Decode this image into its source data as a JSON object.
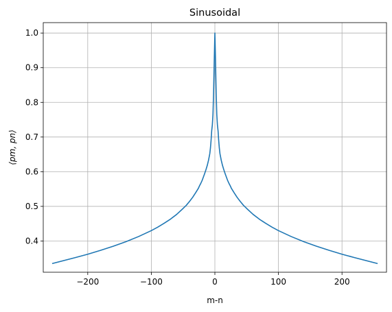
{
  "chart_data": {
    "type": "line",
    "title": "Sinusoidal",
    "xlabel": "m-n",
    "ylabel": "⟨pm, pn⟩",
    "xlim": [
      -270,
      270
    ],
    "ylim": [
      0.31,
      1.03
    ],
    "xticks": [
      -200,
      -100,
      0,
      100,
      200
    ],
    "xtick_labels": [
      "−200",
      "−100",
      "0",
      "100",
      "200"
    ],
    "yticks": [
      0.4,
      0.5,
      0.6,
      0.7,
      0.8,
      0.9,
      1.0
    ],
    "ytick_labels": [
      "0.4",
      "0.5",
      "0.6",
      "0.7",
      "0.8",
      "0.9",
      "1.0"
    ],
    "grid": true,
    "series": [
      {
        "color": "#1f77b4",
        "x": [
          -256,
          -220,
          -200,
          -180,
          -160,
          -140,
          -120,
          -100,
          -90,
          -80,
          -70,
          -60,
          -50,
          -45,
          -40,
          -35,
          -30,
          -28,
          -26,
          -24,
          -22,
          -20,
          -18,
          -16,
          -14,
          -12,
          -10,
          -8,
          -7,
          -6,
          -5,
          -4,
          -3,
          -2,
          -1,
          0,
          1,
          2,
          3,
          4,
          5,
          6,
          7,
          8,
          10,
          12,
          14,
          16,
          18,
          20,
          22,
          24,
          26,
          28,
          30,
          35,
          40,
          45,
          50,
          60,
          70,
          80,
          90,
          100,
          120,
          140,
          160,
          180,
          200,
          220,
          256
        ],
        "y": [
          0.335,
          0.352,
          0.362,
          0.373,
          0.385,
          0.398,
          0.413,
          0.43,
          0.44,
          0.451,
          0.463,
          0.477,
          0.494,
          0.503,
          0.514,
          0.526,
          0.54,
          0.546,
          0.552,
          0.56,
          0.567,
          0.575,
          0.585,
          0.595,
          0.606,
          0.618,
          0.633,
          0.652,
          0.668,
          0.69,
          0.718,
          0.735,
          0.765,
          0.83,
          0.92,
          1.0,
          0.92,
          0.83,
          0.765,
          0.735,
          0.718,
          0.69,
          0.668,
          0.652,
          0.633,
          0.618,
          0.606,
          0.595,
          0.585,
          0.575,
          0.567,
          0.56,
          0.552,
          0.546,
          0.54,
          0.526,
          0.514,
          0.503,
          0.494,
          0.477,
          0.463,
          0.451,
          0.44,
          0.43,
          0.413,
          0.398,
          0.385,
          0.373,
          0.362,
          0.352,
          0.335
        ]
      }
    ]
  }
}
